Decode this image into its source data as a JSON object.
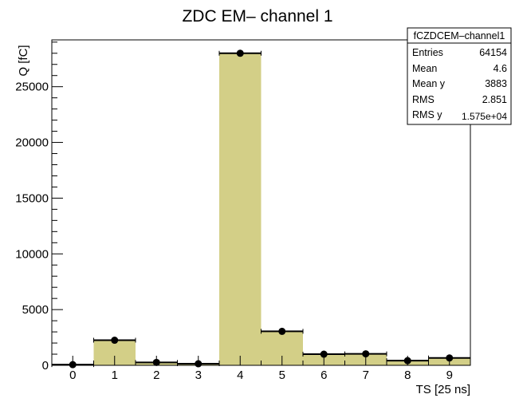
{
  "chart_data": {
    "type": "bar",
    "title": "ZDC EM– channel 1",
    "xlabel": "TS [25 ns]",
    "ylabel": "Q [fC]",
    "categories": [
      "0",
      "1",
      "2",
      "3",
      "4",
      "5",
      "6",
      "7",
      "8",
      "9"
    ],
    "values": [
      60,
      2250,
      260,
      140,
      28000,
      3050,
      1000,
      1030,
      420,
      660
    ],
    "errors": [
      40,
      120,
      70,
      60,
      300,
      130,
      80,
      80,
      60,
      60
    ],
    "xlim": [
      -0.5,
      9.5
    ],
    "ylim": [
      0,
      29200
    ],
    "yticks": [
      0,
      5000,
      10000,
      15000,
      20000,
      25000
    ],
    "ytick_labels": [
      "0",
      "5000",
      "10000",
      "15000",
      "20000",
      "25000"
    ],
    "grid": false,
    "fill_color": "#d3cf87",
    "marker_color": "#000000",
    "stats_box": {
      "name": "fCZDCEM–channel1",
      "rows": [
        {
          "label": "Entries",
          "value": "64154"
        },
        {
          "label": "Mean",
          "value": "4.6"
        },
        {
          "label": "Mean y",
          "value": "3883"
        },
        {
          "label": "RMS",
          "value": "2.851"
        },
        {
          "label": "RMS y",
          "value": "1.575e+04"
        }
      ]
    }
  }
}
